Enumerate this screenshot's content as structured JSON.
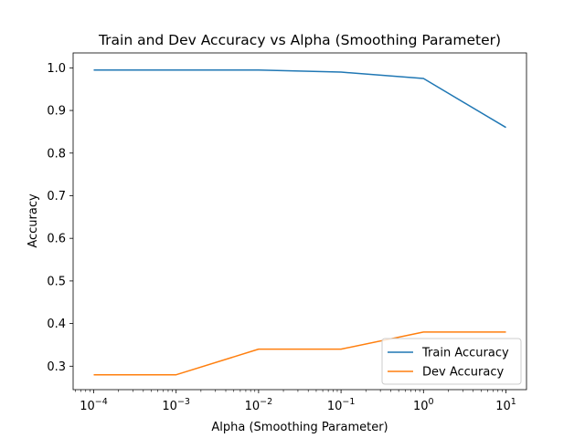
{
  "chart_data": {
    "type": "line",
    "title": "Train and Dev Accuracy vs Alpha (Smoothing Parameter)",
    "xlabel": "Alpha (Smoothing Parameter)",
    "ylabel": "Accuracy",
    "x_scale": "log",
    "x": [
      0.0001,
      0.001,
      0.01,
      0.1,
      1,
      10
    ],
    "x_tick_labels": [
      {
        "base": "10",
        "exp": "−4"
      },
      {
        "base": "10",
        "exp": "−3"
      },
      {
        "base": "10",
        "exp": "−2"
      },
      {
        "base": "10",
        "exp": "−1"
      },
      {
        "base": "10",
        "exp": "0"
      },
      {
        "base": "10",
        "exp": "1"
      }
    ],
    "y_ticks": [
      "0.3",
      "0.4",
      "0.5",
      "0.6",
      "0.7",
      "0.8",
      "0.9",
      "1.0"
    ],
    "ylim": [
      0.245,
      1.035
    ],
    "grid": false,
    "legend_position": "bottom-right",
    "series": [
      {
        "name": "Train Accuracy",
        "color": "#1f77b4",
        "values": [
          0.995,
          0.995,
          0.995,
          0.99,
          0.975,
          0.86
        ]
      },
      {
        "name": "Dev Accuracy",
        "color": "#ff7f0e",
        "values": [
          0.28,
          0.28,
          0.34,
          0.34,
          0.38,
          0.38
        ]
      }
    ]
  }
}
